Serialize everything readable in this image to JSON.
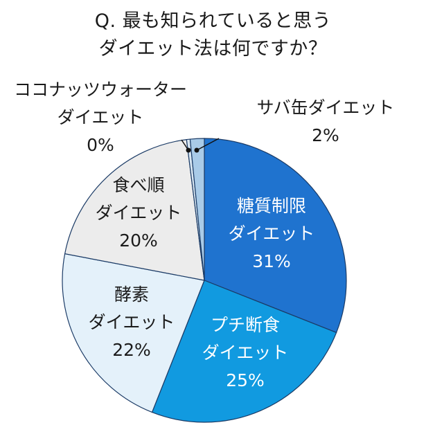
{
  "title_lines": [
    "Q. 最も知られていると思う",
    "ダイエット法は何ですか？"
  ],
  "chart_data": {
    "type": "pie",
    "title": "Q. 最も知られていると思う ダイエット法は何ですか？",
    "slices": [
      {
        "name": "糖質制限ダイエット",
        "label_lines": [
          "糖質制限",
          "ダイエット",
          "31%"
        ],
        "value": 31,
        "color": "#1f73cf",
        "label_color": "#ffffff"
      },
      {
        "name": "プチ断食ダイエット",
        "label_lines": [
          "プチ断食",
          "ダイエット",
          "25%"
        ],
        "value": 25,
        "color": "#119ae0",
        "label_color": "#ffffff"
      },
      {
        "name": "酵素ダイエット",
        "label_lines": [
          "酵素",
          "ダイエット",
          "22%"
        ],
        "value": 22,
        "color": "#e4f1fa",
        "label_color": "#1a1a1a"
      },
      {
        "name": "食べ順ダイエット",
        "label_lines": [
          "食べ順",
          "ダイエット",
          "20%"
        ],
        "value": 20,
        "color": "#ececec",
        "label_color": "#1a1a1a"
      },
      {
        "name": "ココナッツウォーターダイエット",
        "label_lines": [
          "ココナッツウォーター",
          "ダイエット",
          "0%"
        ],
        "value": 0.4,
        "color": "#d9e7f2",
        "label_color": "#1a1a1a"
      },
      {
        "name": "サバ缶ダイエット",
        "label_lines": [
          "サバ缶ダイエット",
          "2%"
        ],
        "value": 1.6,
        "color": "#a9cbe8",
        "label_color": "#1a1a1a"
      }
    ]
  }
}
